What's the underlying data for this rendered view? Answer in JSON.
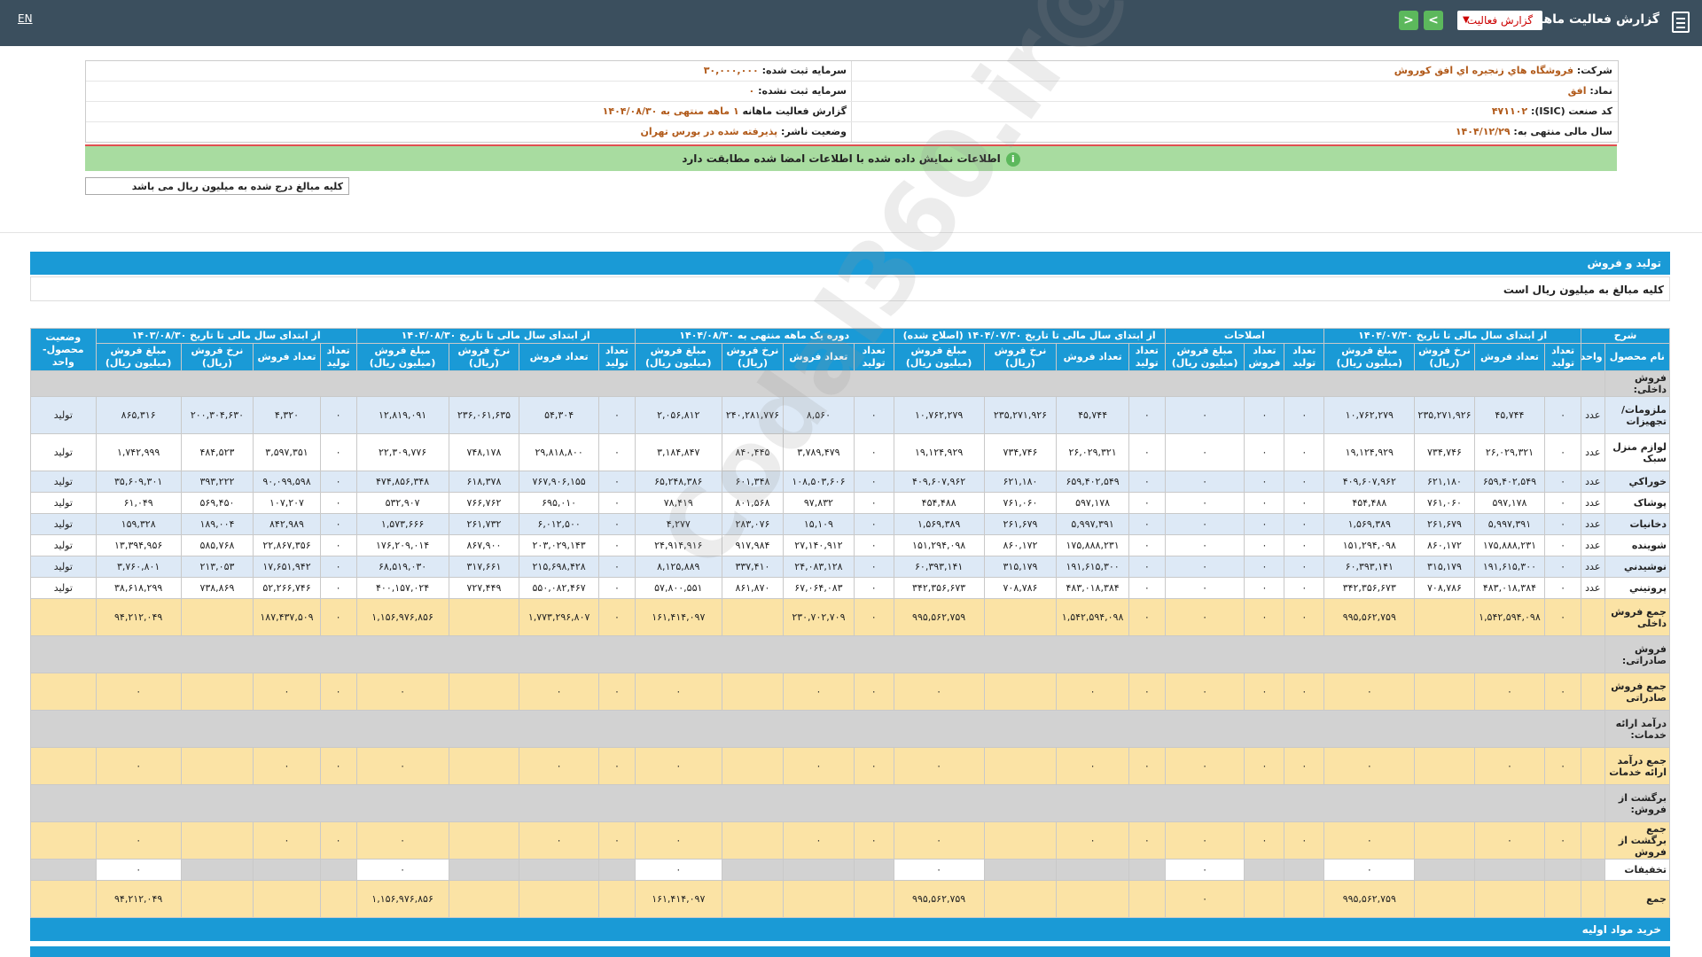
{
  "topbar": {
    "title": "گزارش فعالیت ماهانه",
    "select": "گزارش فعالیت",
    "lang": "EN",
    "prev": "<",
    "next": ">"
  },
  "info": {
    "company_k": "شرکت:",
    "company_v": "فروشگاه هاي زنجيره اي افق کوروش",
    "capital_k": "سرمایه ثبت شده:",
    "capital_v": "۳۰,۰۰۰,۰۰۰",
    "symbol_k": "نماد:",
    "symbol_v": "افق",
    "capital2_k": "سرمایه ثبت نشده:",
    "capital2_v": "۰",
    "isic_k": "کد صنعت (ISIC):",
    "isic_v": "۴۷۱۱۰۲",
    "period_k": "گزارش فعالیت ماهانه",
    "period_v": "۱ ماهه منتهی به ۱۴۰۴/۰۸/۳۰",
    "fy_k": "سال مالی منتهی به:",
    "fy_v": "۱۴۰۴/۱۲/۲۹",
    "status_k": "وضعیت ناشر:",
    "status_v": "پذیرفته شده در بورس تهران"
  },
  "banner": "اطلاعات نمایش داده شده با اطلاعات امضا شده مطابقت دارد",
  "note": "کلیه مبالغ درج شده به میلیون ریال می باشد",
  "section1": "تولید و فروش",
  "sub1": "کلیه مبالغ به میلیون ریال است",
  "section2": "خرید مواد اولیه",
  "watermark": "@Codal360.ir",
  "headers": {
    "group": [
      "شرح",
      "از ابتدای سال مالی تا تاریخ ۱۴۰۴/۰۷/۳۰",
      "اصلاحات",
      "از ابتدای سال مالی تا تاریخ ۱۴۰۴/۰۷/۳۰ (اصلاح شده)",
      "دوره یک ماهه منتهی به ۱۴۰۴/۰۸/۳۰",
      "از ابتدای سال مالی تا تاریخ ۱۴۰۴/۰۸/۳۰",
      "از ابتدای سال مالی تا تاریخ ۱۴۰۳/۰۸/۳۰",
      "وضعیت محصول-واحد"
    ],
    "cols": [
      "نام محصول",
      "واحد",
      "تعداد تولید",
      "تعداد فروش",
      "نرخ فروش (ریال)",
      "مبلغ فروش (میلیون ریال)",
      "تعداد تولید",
      "تعداد فروش",
      "مبلغ فروش (میلیون ریال)",
      "تعداد تولید",
      "تعداد فروش",
      "نرخ فروش (ریال)",
      "مبلغ فروش (میلیون ریال)",
      "تعداد تولید",
      "تعداد فروش",
      "نرخ فروش (ریال)",
      "مبلغ فروش (میلیون ریال)",
      "تعداد تولید",
      "تعداد فروش",
      "نرخ فروش (ریال)",
      "مبلغ فروش (میلیون ریال)",
      "تعداد تولید",
      "تعداد فروش",
      "نرخ فروش (ریال)",
      "مبلغ فروش (میلیون ریال)"
    ]
  },
  "rows": [
    {
      "t": "head",
      "c": [
        "فروش داخلی:"
      ]
    },
    {
      "t": "blue",
      "c": [
        "ملزومات/ تجهیزات",
        "عدد",
        "۰",
        "۴۵,۷۴۴",
        "۲۳۵,۲۷۱,۹۲۶",
        "۱۰,۷۶۲,۲۷۹",
        "۰",
        "۰",
        "۰",
        "۰",
        "۴۵,۷۴۴",
        "۲۳۵,۲۷۱,۹۲۶",
        "۱۰,۷۶۲,۲۷۹",
        "۰",
        "۸,۵۶۰",
        "۲۴۰,۲۸۱,۷۷۶",
        "۲,۰۵۶,۸۱۲",
        "۰",
        "۵۴,۳۰۴",
        "۲۳۶,۰۶۱,۶۳۵",
        "۱۲,۸۱۹,۰۹۱",
        "۰",
        "۴,۳۲۰",
        "۲۰۰,۳۰۴,۶۳۰",
        "۸۶۵,۳۱۶",
        "تولید"
      ]
    },
    {
      "t": "white",
      "c": [
        "لوازم منزل سبک",
        "عدد",
        "۰",
        "۲۶,۰۲۹,۳۲۱",
        "۷۳۴,۷۴۶",
        "۱۹,۱۲۴,۹۲۹",
        "۰",
        "۰",
        "۰",
        "۰",
        "۲۶,۰۲۹,۳۲۱",
        "۷۳۴,۷۴۶",
        "۱۹,۱۲۴,۹۲۹",
        "۰",
        "۳,۷۸۹,۴۷۹",
        "۸۴۰,۴۴۵",
        "۳,۱۸۴,۸۴۷",
        "۰",
        "۲۹,۸۱۸,۸۰۰",
        "۷۴۸,۱۷۸",
        "۲۲,۳۰۹,۷۷۶",
        "۰",
        "۳,۵۹۷,۳۵۱",
        "۴۸۴,۵۲۳",
        "۱,۷۴۲,۹۹۹",
        "تولید"
      ]
    },
    {
      "t": "blue",
      "c": [
        "خوراکي",
        "عدد",
        "۰",
        "۶۵۹,۴۰۲,۵۴۹",
        "۶۲۱,۱۸۰",
        "۴۰۹,۶۰۷,۹۶۲",
        "۰",
        "۰",
        "۰",
        "۰",
        "۶۵۹,۴۰۲,۵۴۹",
        "۶۲۱,۱۸۰",
        "۴۰۹,۶۰۷,۹۶۲",
        "۰",
        "۱۰۸,۵۰۳,۶۰۶",
        "۶۰۱,۳۴۸",
        "۶۵,۲۴۸,۳۸۶",
        "۰",
        "۷۶۷,۹۰۶,۱۵۵",
        "۶۱۸,۳۷۸",
        "۴۷۴,۸۵۶,۳۴۸",
        "۰",
        "۹۰,۰۹۹,۵۹۸",
        "۳۹۳,۲۲۲",
        "۳۵,۶۰۹,۳۰۱",
        "تولید"
      ]
    },
    {
      "t": "white",
      "c": [
        "پوشاک",
        "عدد",
        "۰",
        "۵۹۷,۱۷۸",
        "۷۶۱,۰۶۰",
        "۴۵۴,۴۸۸",
        "۰",
        "۰",
        "۰",
        "۰",
        "۵۹۷,۱۷۸",
        "۷۶۱,۰۶۰",
        "۴۵۴,۴۸۸",
        "۰",
        "۹۷,۸۳۲",
        "۸۰۱,۵۶۸",
        "۷۸,۴۱۹",
        "۰",
        "۶۹۵,۰۱۰",
        "۷۶۶,۷۶۲",
        "۵۳۲,۹۰۷",
        "۰",
        "۱۰۷,۲۰۷",
        "۵۶۹,۴۵۰",
        "۶۱,۰۴۹",
        "تولید"
      ]
    },
    {
      "t": "blue",
      "c": [
        "دخانیات",
        "عدد",
        "۰",
        "۵,۹۹۷,۳۹۱",
        "۲۶۱,۶۷۹",
        "۱,۵۶۹,۳۸۹",
        "۰",
        "۰",
        "۰",
        "۰",
        "۵,۹۹۷,۳۹۱",
        "۲۶۱,۶۷۹",
        "۱,۵۶۹,۳۸۹",
        "۰",
        "۱۵,۱۰۹",
        "۲۸۳,۰۷۶",
        "۴,۲۷۷",
        "۰",
        "۶,۰۱۲,۵۰۰",
        "۲۶۱,۷۳۲",
        "۱,۵۷۳,۶۶۶",
        "۰",
        "۸۴۲,۹۸۹",
        "۱۸۹,۰۰۴",
        "۱۵۹,۳۲۸",
        "تولید"
      ]
    },
    {
      "t": "white",
      "c": [
        "شوینده",
        "عدد",
        "۰",
        "۱۷۵,۸۸۸,۲۳۱",
        "۸۶۰,۱۷۲",
        "۱۵۱,۲۹۴,۰۹۸",
        "۰",
        "۰",
        "۰",
        "۰",
        "۱۷۵,۸۸۸,۲۳۱",
        "۸۶۰,۱۷۲",
        "۱۵۱,۲۹۴,۰۹۸",
        "۰",
        "۲۷,۱۴۰,۹۱۲",
        "۹۱۷,۹۸۴",
        "۲۴,۹۱۴,۹۱۶",
        "۰",
        "۲۰۳,۰۲۹,۱۴۳",
        "۸۶۷,۹۰۰",
        "۱۷۶,۲۰۹,۰۱۴",
        "۰",
        "۲۲,۸۶۷,۳۵۶",
        "۵۸۵,۷۶۸",
        "۱۳,۳۹۴,۹۵۶",
        "تولید"
      ]
    },
    {
      "t": "blue",
      "c": [
        "نوشيدني",
        "عدد",
        "۰",
        "۱۹۱,۶۱۵,۳۰۰",
        "۳۱۵,۱۷۹",
        "۶۰,۳۹۳,۱۴۱",
        "۰",
        "۰",
        "۰",
        "۰",
        "۱۹۱,۶۱۵,۳۰۰",
        "۳۱۵,۱۷۹",
        "۶۰,۳۹۳,۱۴۱",
        "۰",
        "۲۴,۰۸۳,۱۲۸",
        "۳۳۷,۴۱۰",
        "۸,۱۲۵,۸۸۹",
        "۰",
        "۲۱۵,۶۹۸,۴۲۸",
        "۳۱۷,۶۶۱",
        "۶۸,۵۱۹,۰۳۰",
        "۰",
        "۱۷,۶۵۱,۹۴۲",
        "۲۱۳,۰۵۳",
        "۳,۷۶۰,۸۰۱",
        "تولید"
      ]
    },
    {
      "t": "white",
      "c": [
        "پروتيني",
        "عدد",
        "۰",
        "۴۸۳,۰۱۸,۳۸۴",
        "۷۰۸,۷۸۶",
        "۳۴۲,۳۵۶,۶۷۳",
        "۰",
        "۰",
        "۰",
        "۰",
        "۴۸۳,۰۱۸,۳۸۴",
        "۷۰۸,۷۸۶",
        "۳۴۲,۳۵۶,۶۷۳",
        "۰",
        "۶۷,۰۶۴,۰۸۳",
        "۸۶۱,۸۷۰",
        "۵۷,۸۰۰,۵۵۱",
        "۰",
        "۵۵۰,۰۸۲,۴۶۷",
        "۷۲۷,۴۴۹",
        "۴۰۰,۱۵۷,۰۲۴",
        "۰",
        "۵۲,۲۶۶,۷۴۶",
        "۷۳۸,۸۶۹",
        "۳۸,۶۱۸,۲۹۹",
        "تولید"
      ]
    },
    {
      "t": "sum",
      "c": [
        "جمع فروش داخلی",
        "",
        "۰",
        "۱,۵۴۲,۵۹۴,۰۹۸",
        "",
        "۹۹۵,۵۶۲,۷۵۹",
        "۰",
        "۰",
        "۰",
        "۰",
        "۱,۵۴۲,۵۹۴,۰۹۸",
        "",
        "۹۹۵,۵۶۲,۷۵۹",
        "۰",
        "۲۳۰,۷۰۲,۷۰۹",
        "",
        "۱۶۱,۴۱۴,۰۹۷",
        "۰",
        "۱,۷۷۳,۲۹۶,۸۰۷",
        "",
        "۱,۱۵۶,۹۷۶,۸۵۶",
        "۰",
        "۱۸۷,۴۳۷,۵۰۹",
        "",
        "۹۴,۲۱۲,۰۴۹",
        ""
      ]
    },
    {
      "t": "head",
      "c": [
        "فروش صادراتی:"
      ]
    },
    {
      "t": "sum",
      "c": [
        "جمع فروش صادراتی",
        "",
        "۰",
        "۰",
        "",
        "۰",
        "۰",
        "۰",
        "۰",
        "۰",
        "۰",
        "",
        "۰",
        "۰",
        "۰",
        "",
        "۰",
        "۰",
        "۰",
        "",
        "۰",
        "۰",
        "۰",
        "",
        "۰",
        ""
      ]
    },
    {
      "t": "head",
      "c": [
        "درآمد ارائه خدمات:"
      ]
    },
    {
      "t": "sum",
      "c": [
        "جمع درآمد ارائه خدمات",
        "",
        "۰",
        "۰",
        "",
        "۰",
        "۰",
        "۰",
        "۰",
        "۰",
        "۰",
        "",
        "۰",
        "۰",
        "۰",
        "",
        "۰",
        "۰",
        "۰",
        "",
        "۰",
        "۰",
        "۰",
        "",
        "۰",
        ""
      ]
    },
    {
      "t": "head",
      "c": [
        "برگشت از فروش:"
      ]
    },
    {
      "t": "sum",
      "c": [
        "جمع برگشت از فروش",
        "",
        "۰",
        "۰",
        "",
        "۰",
        "۰",
        "۰",
        "۰",
        "۰",
        "۰",
        "",
        "۰",
        "۰",
        "۰",
        "",
        "۰",
        "۰",
        "۰",
        "",
        "۰",
        "۰",
        "۰",
        "",
        "۰",
        ""
      ]
    },
    {
      "t": "disc",
      "c": [
        "تخفیفات",
        "",
        "",
        "",
        "",
        "۰",
        "",
        "",
        "۰",
        "",
        "",
        "",
        "۰",
        "",
        "",
        "",
        "۰",
        "",
        "",
        "",
        "۰",
        "",
        "",
        "",
        "۰",
        ""
      ]
    },
    {
      "t": "sum",
      "c": [
        "جمع",
        "",
        "",
        "",
        "",
        "۹۹۵,۵۶۲,۷۵۹",
        "",
        "",
        "۰",
        "",
        "",
        "",
        "۹۹۵,۵۶۲,۷۵۹",
        "",
        "",
        "",
        "۱۶۱,۴۱۴,۰۹۷",
        "",
        "",
        "",
        "۱,۱۵۶,۹۷۶,۸۵۶",
        "",
        "",
        "",
        "۹۴,۲۱۲,۰۴۹",
        ""
      ]
    }
  ]
}
